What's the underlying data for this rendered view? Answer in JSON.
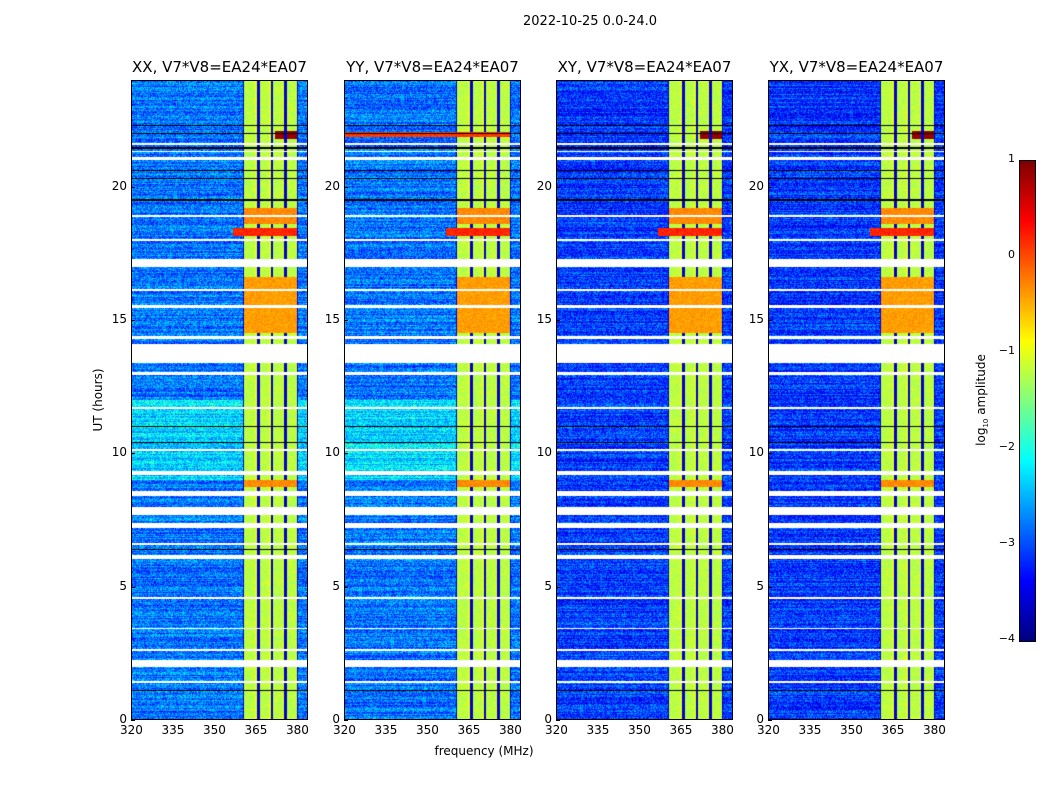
{
  "chart_data": {
    "type": "heatmap",
    "title": "2022-10-25 0.0-24.0",
    "xlabel": "frequency (MHz)",
    "ylabel": "UT (hours)",
    "xlim": [
      320,
      384
    ],
    "ylim": [
      0,
      24
    ],
    "xticks": [
      "320",
      "335",
      "350",
      "365",
      "380"
    ],
    "xtick_values": [
      320,
      335,
      350,
      365,
      380
    ],
    "yticks": [
      "0",
      "5",
      "10",
      "15",
      "20"
    ],
    "ytick_values": [
      0,
      5,
      10,
      15,
      20
    ],
    "panels": [
      {
        "title": "XX, V7*V8=EA24*EA07",
        "pol": "XX",
        "base_level": -2.8
      },
      {
        "title": "YY, V7*V8=EA24*EA07",
        "pol": "YY",
        "base_level": -2.8
      },
      {
        "title": "XY, V7*V8=EA24*EA07",
        "pol": "XY",
        "base_level": -3.1
      },
      {
        "title": "YX, V7*V8=EA24*EA07",
        "pol": "YX",
        "base_level": -3.1
      }
    ],
    "rfi_bands_mhz": [
      [
        361,
        365.5
      ],
      [
        366.5,
        370.5
      ],
      [
        371.5,
        375.5
      ],
      [
        376.5,
        380
      ]
    ],
    "rfi_band_level": -1.2,
    "flagged_ut_ranges": [
      [
        21.55,
        21.65
      ],
      [
        21.3,
        21.35
      ],
      [
        21.0,
        21.1
      ],
      [
        18.85,
        18.95
      ],
      [
        17.95,
        18.05
      ],
      [
        17.0,
        17.3
      ],
      [
        16.1,
        16.15
      ],
      [
        15.45,
        15.55
      ],
      [
        14.3,
        14.4
      ],
      [
        13.4,
        14.1
      ],
      [
        12.95,
        13.05
      ],
      [
        11.65,
        11.75
      ],
      [
        10.1,
        10.15
      ],
      [
        9.2,
        9.35
      ],
      [
        8.4,
        8.6
      ],
      [
        7.7,
        8.0
      ],
      [
        7.2,
        7.4
      ],
      [
        6.55,
        6.65
      ],
      [
        6.05,
        6.2
      ],
      [
        4.55,
        4.6
      ],
      [
        3.4,
        3.45
      ],
      [
        2.6,
        2.65
      ],
      [
        2.0,
        2.25
      ],
      [
        1.4,
        1.45
      ]
    ],
    "dark_ut_lines": [
      22.3,
      22.0,
      21.45,
      20.6,
      20.3,
      19.5,
      13.5,
      14.0,
      11.0,
      10.4,
      6.4,
      2.2,
      1.1
    ],
    "events": [
      {
        "ut": [
          18.15,
          18.45
        ],
        "mhz": [
          357,
          380
        ],
        "level": 0.2,
        "panels": [
          "XX",
          "YY",
          "XY",
          "YX"
        ]
      },
      {
        "ut": [
          21.8,
          22.1
        ],
        "mhz": [
          372,
          380
        ],
        "level": 0.9,
        "panels": [
          "XX",
          "XY",
          "YX"
        ]
      },
      {
        "ut": [
          21.85,
          22.05
        ],
        "mhz": [
          320,
          380
        ],
        "level": 0.1,
        "panels": [
          "YY"
        ]
      },
      {
        "ut": [
          14.5,
          16.6
        ],
        "mhz": [
          361,
          380
        ],
        "level": -0.4,
        "panels": [
          "XX",
          "YY",
          "XY",
          "YX"
        ]
      },
      {
        "ut": [
          18.6,
          19.2
        ],
        "mhz": [
          361,
          380
        ],
        "level": -0.3,
        "panels": [
          "XX",
          "YY",
          "XY",
          "YX"
        ]
      },
      {
        "ut": [
          8.75,
          9.0
        ],
        "mhz": [
          361,
          380
        ],
        "level": -0.3,
        "panels": [
          "XX",
          "YY",
          "XY",
          "YX"
        ]
      }
    ],
    "colorbar": {
      "label_base": "log",
      "label_sub": "10",
      "label_rest": " amplitude",
      "range": [
        -4,
        1
      ],
      "ticks": [
        "1",
        "0",
        "−1",
        "−2",
        "−3",
        "−4"
      ],
      "tick_values": [
        1,
        0,
        -1,
        -2,
        -3,
        -4
      ],
      "colormap": "jet"
    }
  }
}
